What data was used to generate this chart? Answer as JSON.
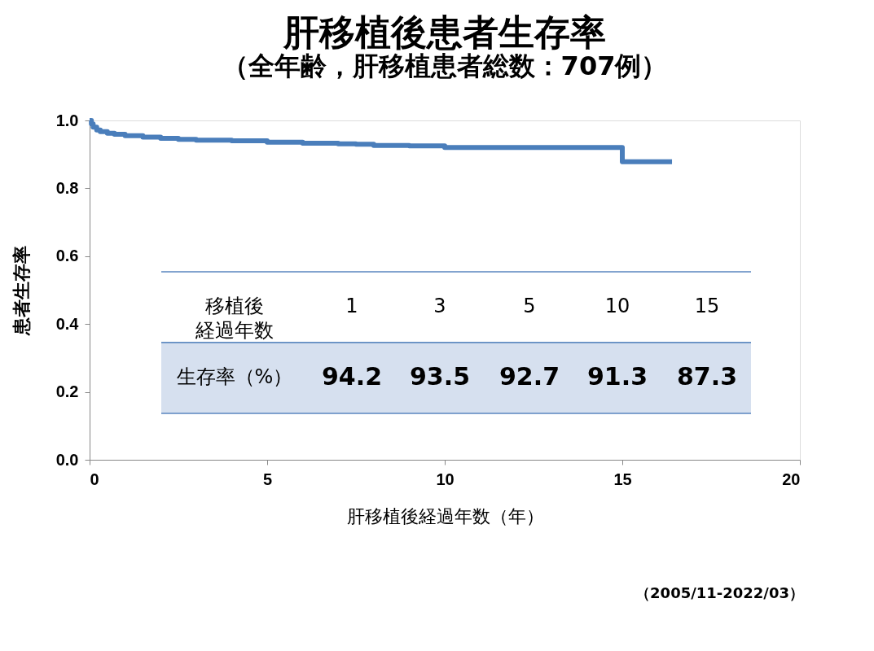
{
  "chart_data": {
    "type": "step",
    "title": "肝移植後患者生存率",
    "subtitle": "（全年齢，肝移植患者総数：707例）",
    "xlabel": "肝移植後経過年数（年）",
    "ylabel": "患者生存率",
    "x": [
      0,
      0.05,
      0.1,
      0.2,
      0.3,
      0.5,
      0.7,
      1,
      1.5,
      2,
      2.5,
      3,
      4,
      5,
      6,
      7,
      7.5,
      8,
      9,
      10,
      11,
      12,
      13,
      14,
      14.9,
      15.0,
      15.5,
      16.4
    ],
    "series": [
      {
        "color": "#4a7ebb",
        "values": [
          1.0,
          0.99,
          0.98,
          0.972,
          0.967,
          0.962,
          0.959,
          0.955,
          0.951,
          0.947,
          0.944,
          0.942,
          0.94,
          0.936,
          0.933,
          0.931,
          0.93,
          0.926,
          0.925,
          0.92,
          0.92,
          0.92,
          0.92,
          0.92,
          0.92,
          0.878,
          0.878,
          0.878
        ]
      }
    ],
    "xlim": [
      0,
      20
    ],
    "xticks": [
      0,
      5,
      10,
      15,
      20
    ],
    "ylim": [
      0,
      1
    ],
    "yticks": [
      {
        "value": 0,
        "label": "0.0"
      },
      {
        "value": 0.2,
        "label": "0.2"
      },
      {
        "value": 0.4,
        "label": "0.4"
      },
      {
        "value": 0.6,
        "label": "0.6"
      },
      {
        "value": 0.8,
        "label": "0.8"
      },
      {
        "value": 1,
        "label": "1.0"
      }
    ],
    "grid": false,
    "line_style": "solid",
    "marker": "none",
    "annotations": [
      "移植後経過年数",
      "1",
      "3",
      "5",
      "10",
      "15",
      "生存率（%）",
      "94.2",
      "93.5",
      "92.7",
      "91.3",
      "87.3",
      "（2005/11-2022/03）"
    ]
  }
}
